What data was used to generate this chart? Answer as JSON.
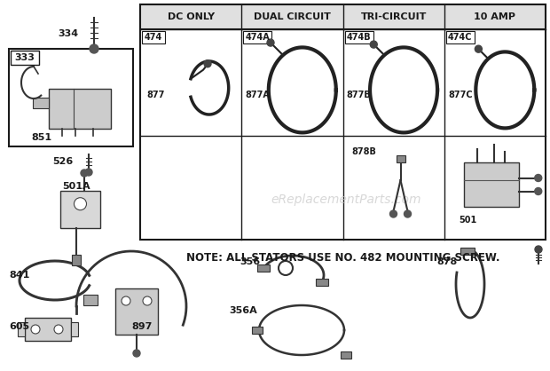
{
  "bg_color": "#ffffff",
  "border_color": "#1a1a1a",
  "text_color": "#1a1a1a",
  "watermark_text": "eReplacementParts.com",
  "note_text": "NOTE: ALL STATORS USE NO. 482 MOUNTING SCREW.",
  "col_headers": [
    "DC ONLY",
    "DUAL CIRCUIT",
    "TRI-CIRCUIT",
    "10 AMP"
  ],
  "col_part_labels": [
    "474",
    "474A",
    "474B",
    "474C"
  ],
  "row1_part_labels": [
    "877",
    "877A",
    "877B",
    "877C"
  ]
}
